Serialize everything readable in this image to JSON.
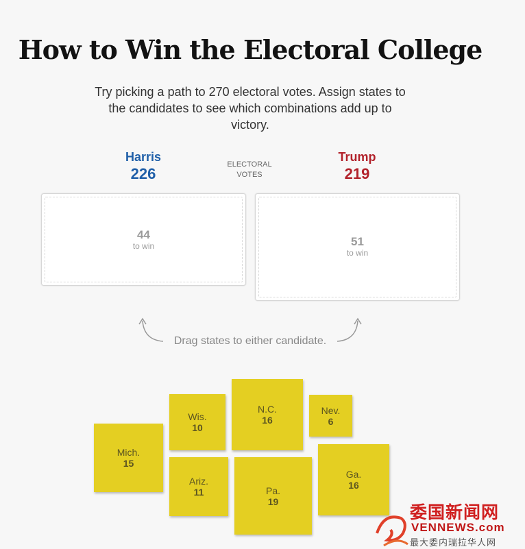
{
  "header": {
    "title": "How to Win the Electoral College",
    "subtitle": "Try picking a path to 270 electoral votes. Assign states to the candidates to see which combinations add up to victory."
  },
  "candidates": {
    "harris": {
      "name": "Harris",
      "votes": "226",
      "to_win": "44",
      "to_win_label": "to win",
      "color": "#1f5fa8"
    },
    "trump": {
      "name": "Trump",
      "votes": "219",
      "to_win": "51",
      "to_win_label": "to win",
      "color": "#b2222b"
    }
  },
  "ev_label": "ELECTORAL VOTES",
  "drag_hint": "Drag states to either candidate.",
  "state_color": "#e4cf22",
  "states": [
    {
      "abbr": "Mich.",
      "ev": "15"
    },
    {
      "abbr": "Wis.",
      "ev": "10"
    },
    {
      "abbr": "Ariz.",
      "ev": "11"
    },
    {
      "abbr": "N.C.",
      "ev": "16"
    },
    {
      "abbr": "Pa.",
      "ev": "19"
    },
    {
      "abbr": "Nev.",
      "ev": "6"
    },
    {
      "abbr": "Ga.",
      "ev": "16"
    }
  ],
  "watermark": {
    "cn": "委国新闻网",
    "en": "VENNEWS.com",
    "sub": "最大委内瑞拉华人网"
  }
}
